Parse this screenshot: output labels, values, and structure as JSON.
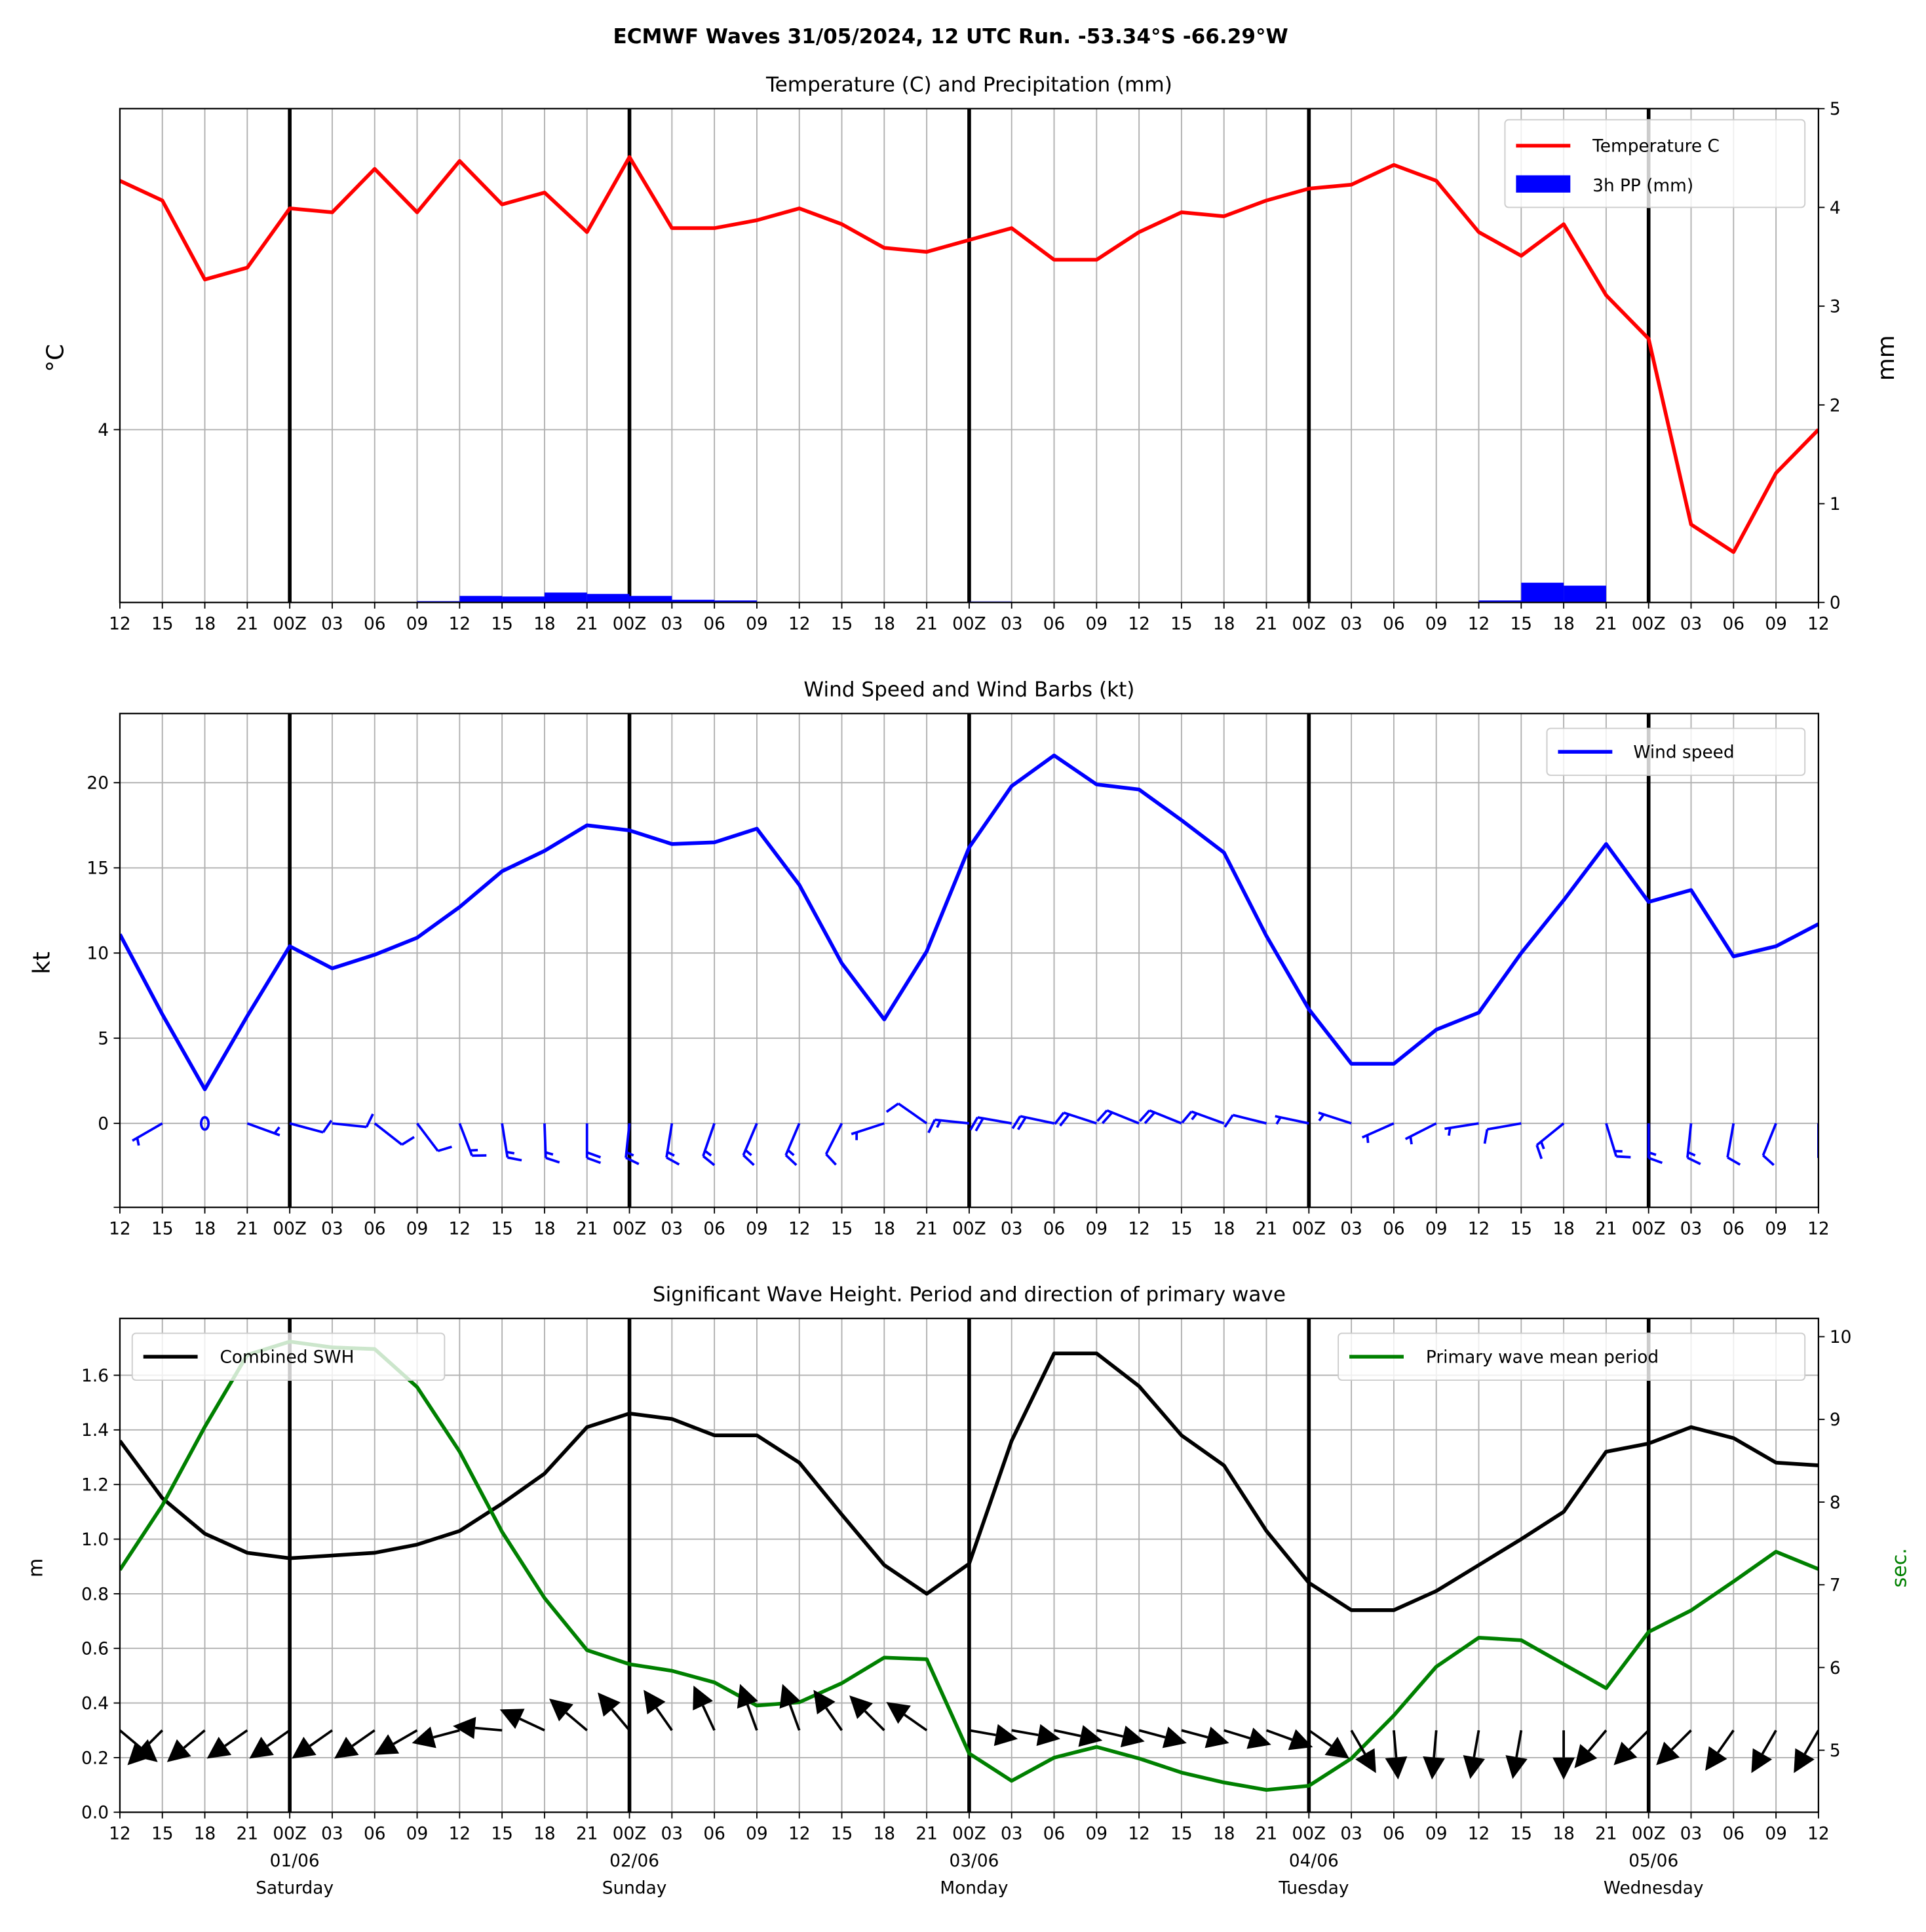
{
  "title": "ECMWF Waves 31/05/2024, 12 UTC Run. -53.34°S -66.29°W",
  "x_tick_labels": [
    "12",
    "15",
    "18",
    "21",
    "00Z",
    "03",
    "06",
    "09",
    "12",
    "15",
    "18",
    "21",
    "00Z",
    "03",
    "06",
    "09",
    "12",
    "15",
    "18",
    "21",
    "00Z",
    "03",
    "06",
    "09",
    "12",
    "15",
    "18",
    "21",
    "00Z",
    "03",
    "06",
    "09",
    "12",
    "15",
    "18",
    "21",
    "00Z",
    "03",
    "06",
    "09",
    "12"
  ],
  "x_tick_labels_bottom": [
    "12",
    "15",
    "18",
    "21",
    "00Z",
    "03",
    "06",
    "09",
    "12",
    "15",
    "18",
    "21",
    "00Z",
    "03",
    "06",
    "09",
    "12",
    "15",
    "18",
    "21",
    "00Z",
    "03",
    "06",
    "09",
    "12",
    "15",
    "18",
    "21",
    "00Z",
    "03",
    "06",
    "09",
    "12",
    "15",
    "18",
    "21",
    "00Z",
    "03",
    "06",
    "09",
    "12"
  ],
  "midnight_indices": [
    4,
    12,
    20,
    28,
    36
  ],
  "day_labels": [
    {
      "time_index": 4,
      "date": "01/06",
      "day": "Saturday"
    },
    {
      "time_index": 12,
      "date": "02/06",
      "day": "Sunday"
    },
    {
      "time_index": 20,
      "date": "03/06",
      "day": "Monday"
    },
    {
      "time_index": 28,
      "date": "04/06",
      "day": "Tuesday"
    },
    {
      "time_index": 36,
      "date": "05/06",
      "day": "Wednesday"
    }
  ],
  "chart_data": [
    {
      "type": "line",
      "title": "Temperature (C) and Precipitation (mm)",
      "ylabel": "°C",
      "ylabel_right": "mm",
      "ylim": [
        3.5625,
        4.8125
      ],
      "ylim_right": [
        0,
        5
      ],
      "yticks": [
        4
      ],
      "yticks_right": [
        0,
        1,
        2,
        3,
        4,
        5
      ],
      "legend_position": "top-right",
      "series": [
        {
          "name": "Temperature C",
          "color": "#ff0000",
          "axis": "left",
          "type": "line",
          "values": [
            4.63,
            4.58,
            4.38,
            4.41,
            4.56,
            4.55,
            4.66,
            4.55,
            4.68,
            4.57,
            4.6,
            4.5,
            4.69,
            4.51,
            4.51,
            4.53,
            4.56,
            4.52,
            4.46,
            4.45,
            4.48,
            4.51,
            4.43,
            4.43,
            4.5,
            4.55,
            4.54,
            4.58,
            4.61,
            4.62,
            4.67,
            4.63,
            4.5,
            4.44,
            4.52,
            4.34,
            4.23,
            3.76,
            3.69,
            3.89,
            4.0
          ]
        },
        {
          "name": "3h PP (mm)",
          "color": "#0000ff",
          "axis": "right",
          "type": "bar",
          "values": [
            0,
            0,
            0,
            0,
            0,
            0,
            0,
            0.013,
            0.066,
            0.06,
            0.1,
            0.086,
            0.066,
            0.027,
            0.02,
            0,
            0,
            0,
            0,
            0,
            0.01,
            0,
            0,
            0,
            0,
            0,
            0,
            0,
            0,
            0,
            0,
            0,
            0.02,
            0.2,
            0.17,
            0,
            0,
            0,
            0,
            0
          ]
        }
      ]
    },
    {
      "type": "line",
      "title": "Wind Speed and Wind Barbs (kt)",
      "ylabel": "kt",
      "ylim": [
        -4.93,
        24.06
      ],
      "yticks": [
        0,
        5,
        10,
        15,
        20
      ],
      "legend_position": "top-right",
      "series": [
        {
          "name": "Wind speed",
          "color": "#0000ff",
          "values": [
            11.1,
            6.4,
            2.0,
            6.3,
            10.4,
            9.1,
            9.9,
            10.9,
            12.7,
            14.8,
            16.0,
            17.5,
            17.2,
            16.4,
            16.5,
            17.3,
            14.0,
            9.4,
            6.1,
            10.1,
            16.2,
            19.8,
            21.6,
            19.9,
            19.6,
            17.8,
            15.9,
            11.0,
            6.7,
            3.5,
            3.5,
            5.5,
            6.5,
            10.0,
            13.1,
            16.4,
            13.0,
            13.7,
            9.8,
            10.4,
            11.7
          ]
        }
      ],
      "barbs": {
        "color": "#0000ff",
        "from_direction_deg": [
          240,
          240,
          null,
          110,
          105,
          96,
          128,
          143,
          159,
          171,
          178,
          180,
          186,
          189,
          199,
          203,
          203,
          207,
          252,
          305,
          276,
          280,
          282,
          288,
          292,
          292,
          290,
          284,
          282,
          288,
          246,
          243,
          261,
          260,
          231,
          163,
          180,
          186,
          190,
          202,
          180
        ]
      }
    },
    {
      "type": "line",
      "title": "Significant Wave Height. Period and direction of primary wave",
      "ylabel": "m",
      "ylabel_right": "sec.",
      "ylim": [
        0,
        1.808
      ],
      "ylim_right": [
        4.25,
        10.22
      ],
      "yticks": [
        "0.0",
        "0.2",
        "0.4",
        "0.6",
        "0.8",
        "1.0",
        "1.2",
        "1.4",
        "1.6"
      ],
      "yticks_right": [
        5,
        6,
        7,
        8,
        9,
        10
      ],
      "series": [
        {
          "name": "Combined SWH",
          "color": "#000000",
          "axis": "left",
          "legend_position": "top-left",
          "values": [
            1.36,
            1.15,
            1.02,
            0.95,
            0.93,
            0.94,
            0.95,
            0.98,
            1.03,
            1.13,
            1.24,
            1.41,
            1.46,
            1.44,
            1.38,
            1.38,
            1.28,
            1.09,
            0.905,
            0.8,
            0.91,
            1.36,
            1.68,
            1.68,
            1.56,
            1.38,
            1.27,
            1.03,
            0.84,
            0.74,
            0.74,
            0.81,
            0.905,
            1.0,
            1.1,
            1.32,
            1.35,
            1.41,
            1.37,
            1.28,
            1.27
          ]
        },
        {
          "name": "Primary wave mean period",
          "color": "#008000",
          "axis": "right",
          "legend_position": "top-right",
          "values": [
            7.18,
            7.96,
            8.91,
            9.78,
            9.94,
            9.87,
            9.85,
            9.39,
            8.61,
            7.64,
            6.84,
            6.21,
            6.04,
            5.96,
            5.82,
            5.54,
            5.58,
            5.81,
            6.12,
            6.1,
            4.96,
            4.63,
            4.91,
            5.04,
            4.9,
            4.73,
            4.61,
            4.52,
            4.57,
            4.9,
            5.42,
            6.01,
            6.36,
            6.33,
            6.04,
            5.75,
            6.43,
            6.69,
            7.04,
            7.4,
            7.19
          ]
        }
      ],
      "wave_direction": {
        "color": "#000000",
        "anchor_value_m": 0.3,
        "heading_deg": [
          130,
          225,
          230,
          235,
          235,
          235,
          235,
          240,
          255,
          275,
          295,
          310,
          320,
          325,
          335,
          340,
          340,
          325,
          315,
          305,
          100,
          100,
          102,
          103,
          105,
          105,
          107,
          110,
          125,
          150,
          175,
          185,
          190,
          190,
          180,
          220,
          225,
          225,
          215,
          210,
          210
        ]
      }
    }
  ]
}
